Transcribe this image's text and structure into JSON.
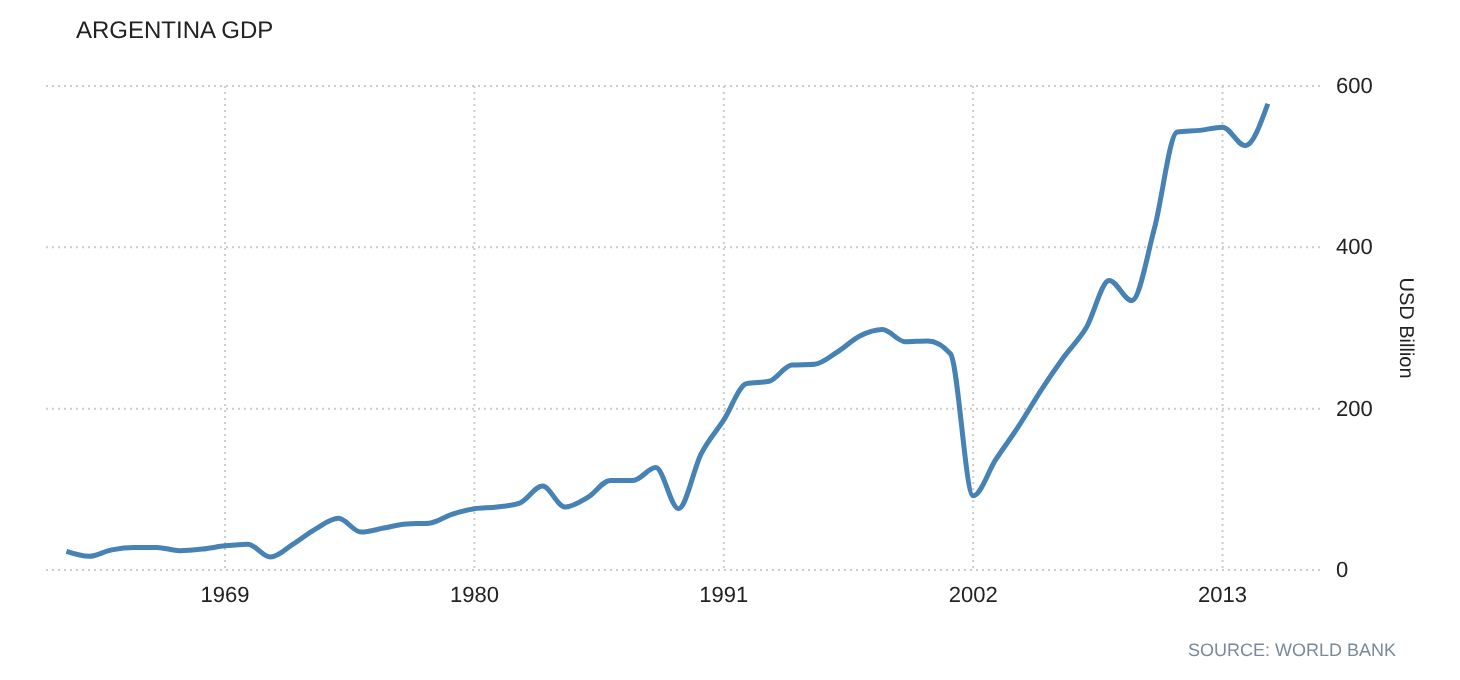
{
  "chart_data": {
    "type": "line",
    "title": "ARGENTINA GDP",
    "ylabel": "USD Billion",
    "x": [
      1962,
      1963,
      1964,
      1965,
      1966,
      1967,
      1968,
      1969,
      1970,
      1971,
      1972,
      1973,
      1974,
      1975,
      1976,
      1977,
      1978,
      1979,
      1980,
      1981,
      1982,
      1983,
      1984,
      1985,
      1986,
      1987,
      1988,
      1989,
      1990,
      1991,
      1992,
      1993,
      1994,
      1995,
      1996,
      1997,
      1998,
      1999,
      2000,
      2001,
      2002,
      2003,
      2004,
      2005,
      2006,
      2007,
      2008,
      2009,
      2010,
      2011,
      2012,
      2013,
      2014,
      2015
    ],
    "series": [
      {
        "color": "#4682b4",
        "values": [
          23,
          17,
          25,
          28,
          28,
          24,
          26,
          30,
          32,
          16,
          32,
          51,
          64,
          47,
          52,
          57,
          58,
          69,
          76,
          78,
          83,
          104,
          78,
          90,
          111,
          111,
          127,
          76,
          144,
          186,
          231,
          234,
          254,
          255,
          270,
          290,
          298,
          283,
          284,
          268,
          92,
          137,
          178,
          223,
          264,
          301,
          359,
          334,
          424,
          543,
          545,
          549,
          526,
          578
        ]
      }
    ],
    "xlim": [
      1961.1,
      2017.3
    ],
    "ylim": [
      0,
      600
    ],
    "xticks": [
      1969,
      1980,
      1991,
      2002,
      2013
    ],
    "yticks": [
      0,
      200,
      400,
      600
    ],
    "grid": true,
    "line_style": "solid",
    "marker": "none",
    "annotations": [
      "SOURCE: WORLD BANK"
    ]
  }
}
